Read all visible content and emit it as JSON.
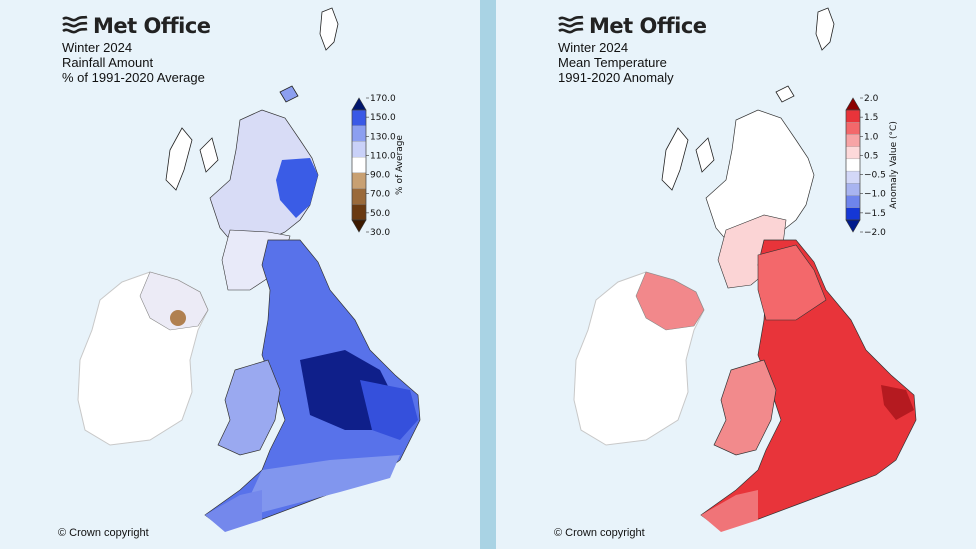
{
  "brand": "Met Office",
  "left_panel": {
    "title_lines": [
      "Winter 2024",
      "Rainfall Amount",
      "% of 1991-2020 Average"
    ],
    "colorbar": {
      "axis_label": "% of Average",
      "ticks": [
        "170.0",
        "150.0",
        "130.0",
        "110.0",
        "90.0",
        "70.0",
        "50.0",
        "30.0"
      ],
      "colors": [
        "#00166e",
        "#3a59e6",
        "#8c9ff0",
        "#c9d1f8",
        "#ffffff",
        "#c8a072",
        "#9a6a3b",
        "#6a3a12",
        "#3d1a00"
      ]
    },
    "copyright": "© Crown copyright"
  },
  "right_panel": {
    "title_lines": [
      "Winter 2024",
      "Mean Temperature",
      "1991-2020 Anomaly"
    ],
    "colorbar": {
      "axis_label": "Anomaly Value (°C)",
      "ticks": [
        "2.0",
        "1.5",
        "1.0",
        "0.5",
        "−0.5",
        "−1.0",
        "−1.5",
        "−2.0"
      ],
      "colors": [
        "#8b0000",
        "#e8343a",
        "#f3686b",
        "#f7a4a6",
        "#fdd9da",
        "#ffffff",
        "#d3d8f8",
        "#a8b4f0",
        "#6e84ec",
        "#1537d6",
        "#001a8c"
      ]
    },
    "copyright": "© Crown copyright"
  }
}
